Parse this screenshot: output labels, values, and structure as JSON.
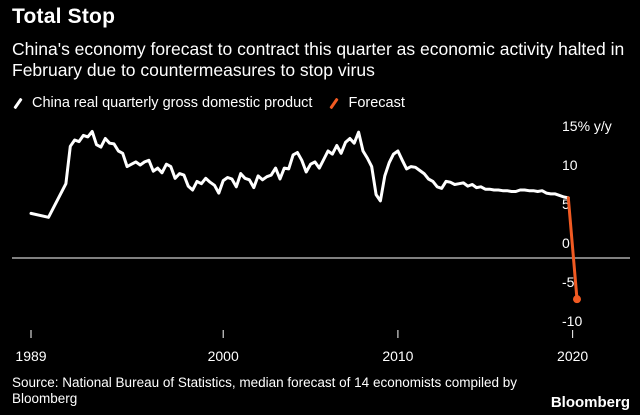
{
  "header": {
    "title": "Total Stop",
    "subtitle": "China's economy forecast to contract this quarter as economic activity halted in February due to countermeasures to stop virus"
  },
  "legend": [
    {
      "label": "China real quarterly gross domestic product",
      "color": "#ffffff"
    },
    {
      "label": "Forecast",
      "color": "#f15a22"
    }
  ],
  "footer": {
    "source": "Source: National Bureau of Statistics, median forecast of 14 economists compiled by Bloomberg",
    "brand": "Bloomberg"
  },
  "chart_data": {
    "type": "line",
    "title": "Total Stop",
    "xlabel": "",
    "ylabel": "% y/y",
    "xlim": [
      1989.0,
      2020.25
    ],
    "ylim": [
      -10,
      15
    ],
    "x_ticks": [
      {
        "value": 1989,
        "label": "1989"
      },
      {
        "value": 2000,
        "label": "2000"
      },
      {
        "value": 2010,
        "label": "2010"
      },
      {
        "value": 2020,
        "label": "2020"
      }
    ],
    "y_ticks": [
      {
        "value": 15,
        "label": "15% y/y"
      },
      {
        "value": 10,
        "label": "10"
      },
      {
        "value": 5,
        "label": "5"
      },
      {
        "value": 0,
        "label": "0"
      },
      {
        "value": -5,
        "label": "-5"
      },
      {
        "value": -10,
        "label": "-10"
      }
    ],
    "zero_line": true,
    "series": [
      {
        "name": "China real quarterly gross domestic product",
        "color": "#ffffff",
        "points": [
          [
            1989.0,
            3.8
          ],
          [
            1990.0,
            3.3
          ],
          [
            1991.0,
            7.6
          ],
          [
            1991.25,
            12.4
          ],
          [
            1991.5,
            13.2
          ],
          [
            1991.75,
            13.0
          ],
          [
            1992.0,
            13.8
          ],
          [
            1992.25,
            13.6
          ],
          [
            1992.5,
            14.3
          ],
          [
            1992.75,
            12.6
          ],
          [
            1993.0,
            12.3
          ],
          [
            1993.25,
            13.4
          ],
          [
            1993.5,
            12.8
          ],
          [
            1993.75,
            12.7
          ],
          [
            1994.0,
            11.8
          ],
          [
            1994.25,
            11.5
          ],
          [
            1994.5,
            9.8
          ],
          [
            1994.75,
            10.1
          ],
          [
            1995.0,
            10.4
          ],
          [
            1995.25,
            10.0
          ],
          [
            1995.5,
            10.4
          ],
          [
            1995.75,
            10.6
          ],
          [
            1996.0,
            9.2
          ],
          [
            1996.25,
            9.6
          ],
          [
            1996.5,
            9.0
          ],
          [
            1996.75,
            10.1
          ],
          [
            1997.0,
            9.8
          ],
          [
            1997.25,
            8.3
          ],
          [
            1997.5,
            8.9
          ],
          [
            1997.75,
            8.7
          ],
          [
            1998.0,
            7.3
          ],
          [
            1998.25,
            6.8
          ],
          [
            1998.5,
            7.9
          ],
          [
            1998.75,
            7.6
          ],
          [
            1999.0,
            8.3
          ],
          [
            1999.25,
            7.8
          ],
          [
            1999.5,
            7.4
          ],
          [
            1999.75,
            6.4
          ],
          [
            2000.0,
            8.0
          ],
          [
            2000.25,
            8.4
          ],
          [
            2000.5,
            8.2
          ],
          [
            2000.75,
            7.2
          ],
          [
            2001.0,
            8.9
          ],
          [
            2001.25,
            8.3
          ],
          [
            2001.5,
            8.1
          ],
          [
            2001.75,
            7.1
          ],
          [
            2002.0,
            8.6
          ],
          [
            2002.25,
            8.1
          ],
          [
            2002.5,
            8.5
          ],
          [
            2002.75,
            8.7
          ],
          [
            2003.0,
            9.6
          ],
          [
            2003.25,
            8.2
          ],
          [
            2003.5,
            9.6
          ],
          [
            2003.75,
            9.5
          ],
          [
            2004.0,
            11.3
          ],
          [
            2004.25,
            11.6
          ],
          [
            2004.5,
            10.6
          ],
          [
            2004.75,
            9.1
          ],
          [
            2005.0,
            10.1
          ],
          [
            2005.25,
            10.4
          ],
          [
            2005.5,
            9.6
          ],
          [
            2005.75,
            10.7
          ],
          [
            2006.0,
            11.8
          ],
          [
            2006.25,
            11.4
          ],
          [
            2006.5,
            12.5
          ],
          [
            2006.75,
            11.5
          ],
          [
            2007.0,
            12.9
          ],
          [
            2007.25,
            13.4
          ],
          [
            2007.5,
            12.8
          ],
          [
            2007.75,
            14.2
          ],
          [
            2008.0,
            11.8
          ],
          [
            2008.25,
            10.9
          ],
          [
            2008.5,
            9.8
          ],
          [
            2008.75,
            6.2
          ],
          [
            2009.0,
            5.4
          ],
          [
            2009.25,
            8.6
          ],
          [
            2009.5,
            10.3
          ],
          [
            2009.75,
            11.4
          ],
          [
            2010.0,
            11.8
          ],
          [
            2010.25,
            10.6
          ],
          [
            2010.5,
            9.5
          ],
          [
            2010.75,
            9.8
          ],
          [
            2011.0,
            9.7
          ],
          [
            2011.25,
            9.3
          ],
          [
            2011.5,
            8.9
          ],
          [
            2011.75,
            8.2
          ],
          [
            2012.0,
            7.9
          ],
          [
            2012.25,
            7.2
          ],
          [
            2012.5,
            7.0
          ],
          [
            2012.75,
            7.9
          ],
          [
            2013.0,
            7.8
          ],
          [
            2013.25,
            7.5
          ],
          [
            2013.5,
            7.6
          ],
          [
            2013.75,
            7.7
          ],
          [
            2014.0,
            7.3
          ],
          [
            2014.25,
            7.5
          ],
          [
            2014.5,
            7.1
          ],
          [
            2014.75,
            7.2
          ],
          [
            2015.0,
            6.9
          ],
          [
            2015.25,
            6.9
          ],
          [
            2015.5,
            6.8
          ],
          [
            2015.75,
            6.8
          ],
          [
            2016.0,
            6.7
          ],
          [
            2016.25,
            6.7
          ],
          [
            2016.5,
            6.6
          ],
          [
            2016.75,
            6.6
          ],
          [
            2017.0,
            6.8
          ],
          [
            2017.25,
            6.8
          ],
          [
            2017.5,
            6.7
          ],
          [
            2017.75,
            6.7
          ],
          [
            2018.0,
            6.6
          ],
          [
            2018.25,
            6.7
          ],
          [
            2018.5,
            6.4
          ],
          [
            2018.75,
            6.3
          ],
          [
            2019.0,
            6.3
          ],
          [
            2019.25,
            6.1
          ],
          [
            2019.5,
            5.9
          ],
          [
            2019.75,
            5.8
          ]
        ]
      },
      {
        "name": "Forecast",
        "color": "#f15a22",
        "points": [
          [
            2019.75,
            5.8
          ],
          [
            2020.25,
            -7.2
          ]
        ]
      }
    ]
  }
}
